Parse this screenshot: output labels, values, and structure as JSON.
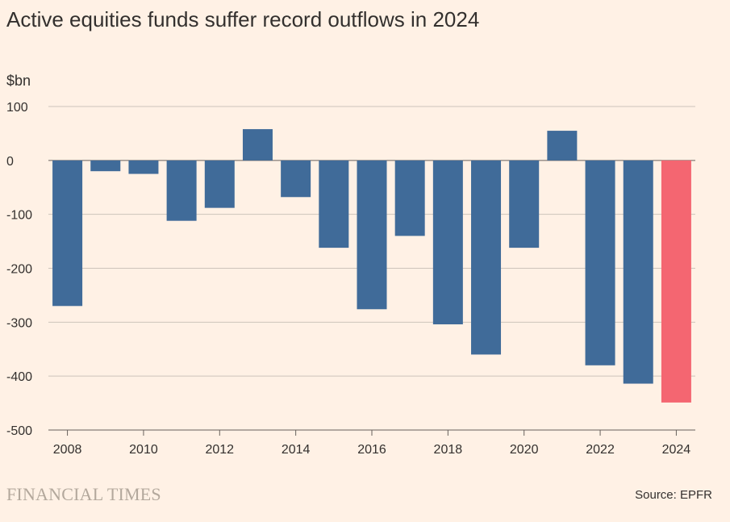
{
  "title": "Active equities funds suffer record outflows in 2024",
  "unit_label": "$bn",
  "brand": "FINANCIAL TIMES",
  "source": "Source: EPFR",
  "colors": {
    "background": "#fff1e5",
    "bar": "#406b99",
    "highlight": "#f46671",
    "grid": "#cdc4bb",
    "text": "#33302e"
  },
  "chart_data": {
    "type": "bar",
    "title": "Active equities funds suffer record outflows in 2024",
    "ylabel": "$bn",
    "xlabel": "",
    "ylim": [
      -500,
      100
    ],
    "yticks": [
      100,
      0,
      -100,
      -200,
      -300,
      -400,
      -500
    ],
    "xtick_labels": [
      "2008",
      "2010",
      "2012",
      "2014",
      "2016",
      "2018",
      "2020",
      "2022",
      "2024"
    ],
    "grid": true,
    "categories": [
      "2008",
      "2009",
      "2010",
      "2011",
      "2012",
      "2013",
      "2014",
      "2015",
      "2016",
      "2017",
      "2018",
      "2019",
      "2020",
      "2021",
      "2022",
      "2023",
      "2024"
    ],
    "values": [
      -270,
      -20,
      -25,
      -112,
      -88,
      58,
      -68,
      -162,
      -276,
      -140,
      -304,
      -360,
      -162,
      55,
      -380,
      -414,
      -449
    ],
    "highlight": "2024"
  }
}
